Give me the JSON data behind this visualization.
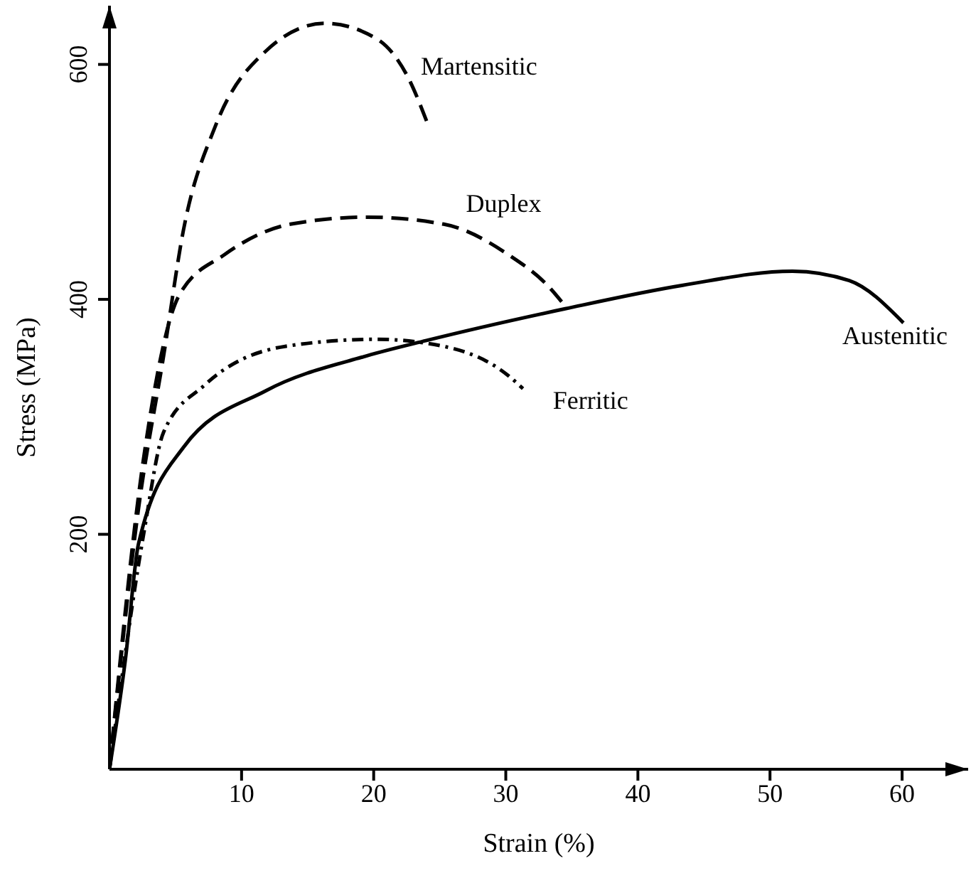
{
  "chart_data": {
    "type": "line",
    "xlabel": "Strain (%)",
    "ylabel": "Stress (MPa)",
    "xlim": [
      0,
      65
    ],
    "ylim": [
      0,
      650
    ],
    "xticks": [
      10,
      20,
      30,
      40,
      50,
      60
    ],
    "yticks": [
      200,
      400,
      600
    ],
    "grid": false,
    "legend": false,
    "marker": "none",
    "series": [
      {
        "name": "Martensitic",
        "color": "#000000",
        "line_style": "dashed",
        "x": [
          0,
          2.2,
          4.1,
          5.6,
          8,
          11.8,
          16.3,
          20.2,
          22.6,
          24.1
        ],
        "values": [
          0,
          222,
          352,
          459,
          547,
          611,
          635,
          622,
          589,
          549
        ]
      },
      {
        "name": "Duplex",
        "color": "#000000",
        "line_style": "dashed",
        "x": [
          0,
          2.6,
          5.3,
          8.7,
          13.7,
          19.5,
          25.3,
          30.2,
          33.4,
          34.3
        ],
        "values": [
          0,
          266,
          404,
          438,
          464,
          470,
          464,
          438,
          409,
          397
        ]
      },
      {
        "name": "Ferritic",
        "color": "#000000",
        "line_style": "dotted",
        "x": [
          0,
          2.6,
          4.1,
          7.2,
          13.3,
          20.2,
          25.3,
          30.2,
          31.3
        ],
        "values": [
          0,
          201,
          287,
          327,
          360,
          366,
          360,
          335,
          324
        ]
      },
      {
        "name": "Austenitic",
        "color": "#000000",
        "line_style": "solid",
        "x": [
          0,
          1.2,
          2.2,
          5.6,
          11.8,
          19.5,
          24,
          34.5,
          43.4,
          51.7,
          56,
          60.1
        ],
        "values": [
          0,
          93,
          192,
          274,
          322,
          352,
          365,
          392,
          412,
          424,
          416,
          380
        ]
      }
    ]
  }
}
